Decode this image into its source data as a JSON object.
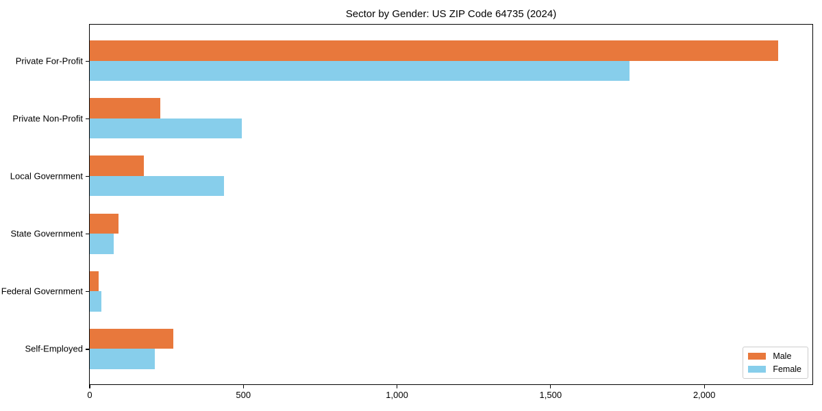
{
  "chart_data": {
    "type": "bar",
    "orientation": "horizontal",
    "title": "Sector by Gender: US ZIP Code 64735 (2024)",
    "categories": [
      "Private For-Profit",
      "Private Non-Profit",
      "Local Government",
      "State Government",
      "Federal Government",
      "Self-Employed"
    ],
    "series": [
      {
        "name": "Male",
        "color": "#E8783C",
        "values": [
          2240,
          230,
          177,
          93,
          30,
          271
        ]
      },
      {
        "name": "Female",
        "color": "#87CEEB",
        "values": [
          1756,
          494,
          437,
          79,
          39,
          212
        ]
      }
    ],
    "xlabel": "",
    "ylabel": "",
    "xlim": [
      0,
      2352
    ],
    "x_ticks": [
      {
        "value": 0,
        "label": "0"
      },
      {
        "value": 500,
        "label": "500"
      },
      {
        "value": 1000,
        "label": "1,000"
      },
      {
        "value": 1500,
        "label": "1,500"
      },
      {
        "value": 2000,
        "label": "2,000"
      }
    ],
    "grid": false,
    "legend": {
      "position": "lower right",
      "entries": [
        "Male",
        "Female"
      ]
    }
  }
}
